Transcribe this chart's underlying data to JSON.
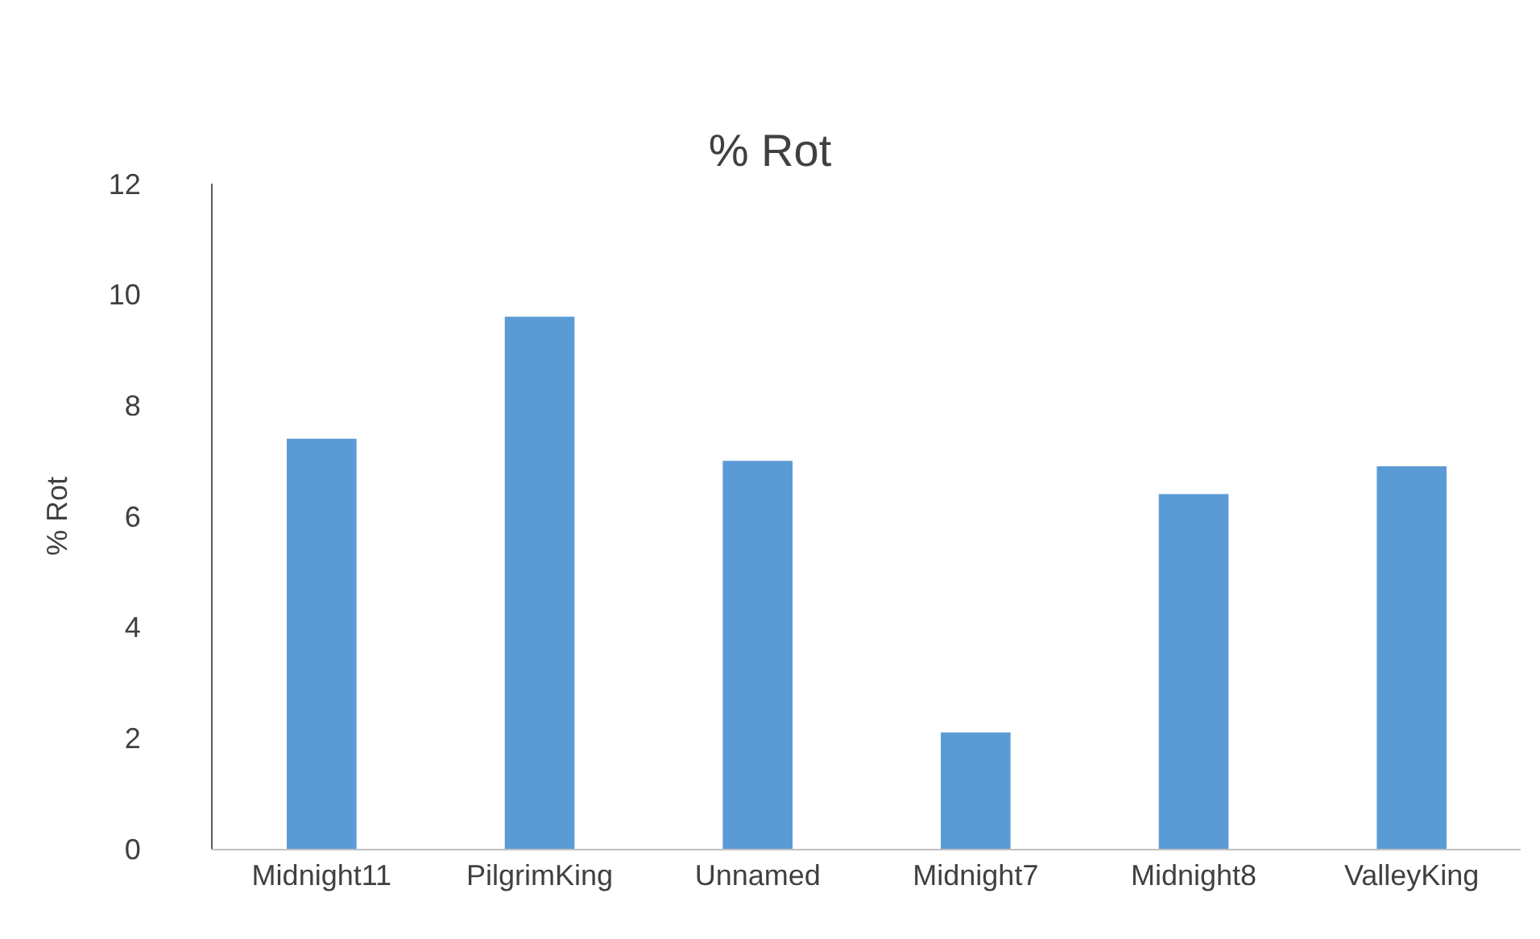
{
  "chart_data": {
    "type": "bar",
    "title": "% Rot",
    "ylabel": "% Rot",
    "categories": [
      "Midnight11",
      "PilgrimKing",
      "Unnamed",
      "Midnight7",
      "Midnight8",
      "ValleyKing"
    ],
    "values": [
      7.4,
      9.6,
      7.0,
      2.1,
      6.4,
      6.9
    ],
    "color": "#5b9bd5",
    "ylim": [
      0,
      12
    ],
    "yticks": [
      0,
      2,
      4,
      6,
      8,
      10,
      12
    ],
    "grid": false,
    "legend": false
  }
}
